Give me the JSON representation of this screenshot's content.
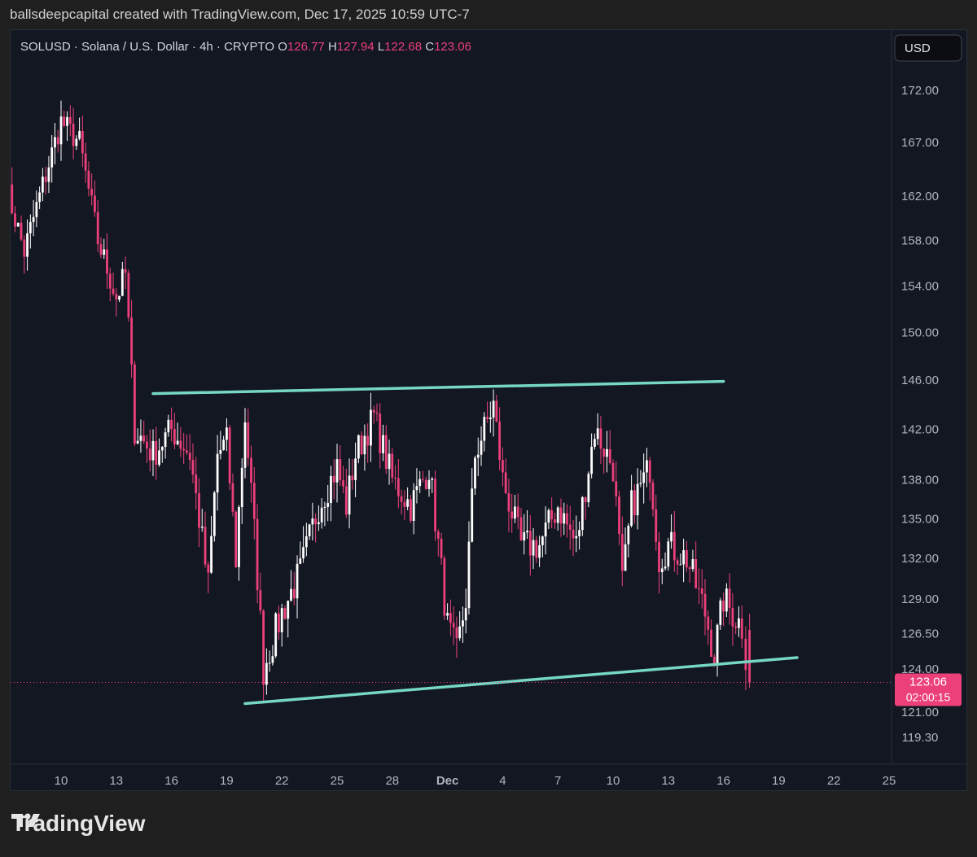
{
  "caption": "ballsdeepcapital created with TradingView.com, Dec 17, 2025 10:59 UTC-7",
  "header": {
    "symbol_line": "SOLUSD · Solana / U.S. Dollar · 4h · CRYPTO",
    "o_label": "O",
    "o_value": "126.77",
    "h_label": "H",
    "h_value": "127.94",
    "l_label": "L",
    "l_value": "122.68",
    "c_label": "C",
    "c_value": "123.06"
  },
  "currency_button": "USD",
  "price_tag": {
    "price": "123.06",
    "countdown": "02:00:15"
  },
  "brand": "TradingView",
  "colors": {
    "background": "#131722",
    "up": "#ffffff",
    "down": "#ec407a",
    "trendline": "#76d7c4",
    "axis_text": "#b2b5be"
  },
  "chart_data": {
    "type": "candlestick",
    "symbol": "SOLUSD",
    "interval": "4h",
    "y_scale": "log",
    "ylim": [
      117.5,
      176.5
    ],
    "y_ticks": [
      "172.00",
      "167.00",
      "162.00",
      "158.00",
      "154.00",
      "150.00",
      "146.00",
      "142.00",
      "138.00",
      "135.00",
      "132.00",
      "129.00",
      "126.50",
      "124.00",
      "121.00",
      "119.30"
    ],
    "x_ticks": [
      "10",
      "13",
      "16",
      "19",
      "22",
      "25",
      "28",
      "Dec",
      "4",
      "7",
      "10",
      "13",
      "16",
      "19",
      "22",
      "25"
    ],
    "current_price": 123.06,
    "last_candle": {
      "open": 126.77,
      "high": 127.94,
      "low": 122.68,
      "close": 123.06
    },
    "trendlines": [
      {
        "name": "resistance",
        "from": {
          "date": "2025-11-15",
          "price": 144.9
        },
        "to": {
          "date": "2025-12-16",
          "price": 145.9
        }
      },
      {
        "name": "support",
        "from": {
          "date": "2025-11-20",
          "price": 121.6
        },
        "to": {
          "date": "2025-12-20",
          "price": 124.8
        }
      }
    ],
    "close_path": [
      [
        "2025-11-07",
        163
      ],
      [
        "2025-11-08",
        157
      ],
      [
        "2025-11-09",
        163
      ],
      [
        "2025-11-10",
        169
      ],
      [
        "2025-11-11",
        167
      ],
      [
        "2025-11-12",
        158
      ],
      [
        "2025-11-13",
        153
      ],
      [
        "2025-11-13T12",
        155
      ],
      [
        "2025-11-14",
        142
      ],
      [
        "2025-11-15",
        140
      ],
      [
        "2025-11-16",
        142
      ],
      [
        "2025-11-17",
        140
      ],
      [
        "2025-11-18",
        130
      ],
      [
        "2025-11-18T12",
        140
      ],
      [
        "2025-11-19",
        141
      ],
      [
        "2025-11-19T12",
        132
      ],
      [
        "2025-11-20",
        143
      ],
      [
        "2025-11-20T12",
        134
      ],
      [
        "2025-11-21",
        124
      ],
      [
        "2025-11-22",
        128
      ],
      [
        "2025-11-23",
        131
      ],
      [
        "2025-11-24",
        136
      ],
      [
        "2025-11-25",
        139
      ],
      [
        "2025-11-25T12",
        136
      ],
      [
        "2025-11-26",
        140
      ],
      [
        "2025-11-27",
        143
      ],
      [
        "2025-11-28",
        138
      ],
      [
        "2025-11-29",
        136
      ],
      [
        "2025-11-30",
        139
      ],
      [
        "2025-12-01",
        127
      ],
      [
        "2025-12-01T12",
        125
      ],
      [
        "2025-12-02",
        129
      ],
      [
        "2025-12-02T12",
        140
      ],
      [
        "2025-12-03",
        142
      ],
      [
        "2025-12-03T12",
        144
      ],
      [
        "2025-12-04",
        138
      ],
      [
        "2025-12-05",
        133
      ],
      [
        "2025-12-06",
        133
      ],
      [
        "2025-12-07",
        136
      ],
      [
        "2025-12-08",
        133
      ],
      [
        "2025-12-09",
        142
      ],
      [
        "2025-12-10",
        139
      ],
      [
        "2025-12-10T12",
        130
      ],
      [
        "2025-12-11",
        136
      ],
      [
        "2025-12-12",
        139
      ],
      [
        "2025-12-12T12",
        132
      ],
      [
        "2025-12-13",
        133
      ],
      [
        "2025-12-14",
        132
      ],
      [
        "2025-12-15",
        128
      ],
      [
        "2025-12-15T12",
        125
      ],
      [
        "2025-12-16",
        129
      ],
      [
        "2025-12-16T12",
        128
      ],
      [
        "2025-12-17",
        127
      ],
      [
        "2025-12-17T10",
        123.06
      ]
    ]
  }
}
